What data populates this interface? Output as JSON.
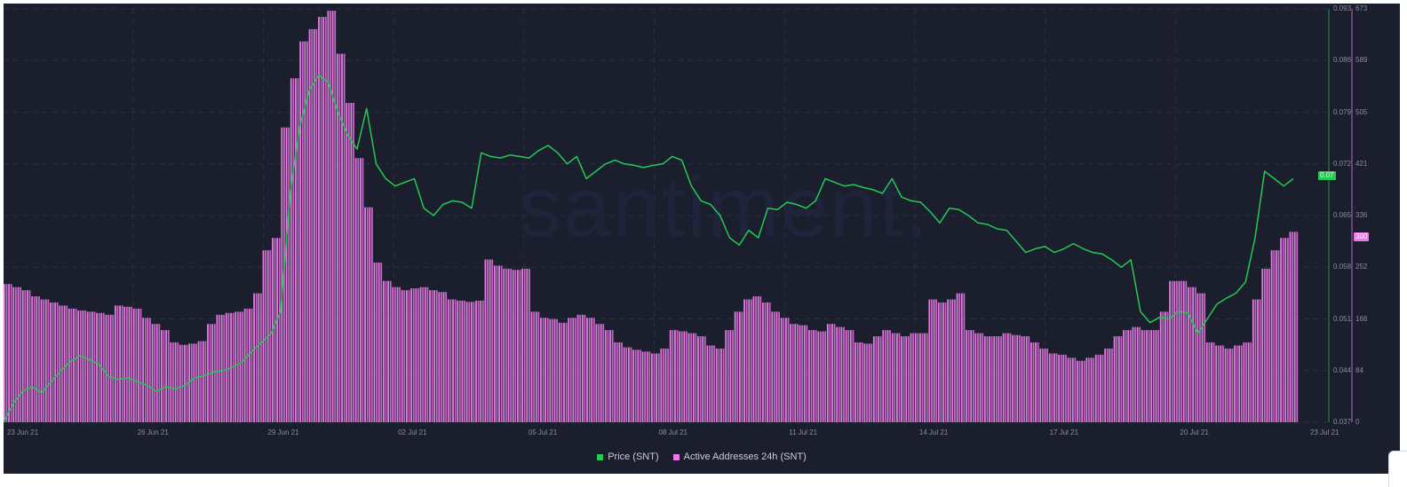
{
  "watermark": "santiment.",
  "legend": [
    {
      "label": "Price (SNT)",
      "color": "#26c953"
    },
    {
      "label": "Active Addresses 24h (SNT)",
      "color": "#e87be8"
    }
  ],
  "price_axis": {
    "ticks": [
      "0.093",
      "0.086",
      "0.079",
      "0.072",
      "0.065",
      "0.058",
      "0.051",
      "0.044",
      "0.037"
    ],
    "current_badge": "0.07",
    "color": "#26c953"
  },
  "aa_axis": {
    "ticks": [
      "673",
      "589",
      "505",
      "421",
      "336",
      "252",
      "168",
      "84",
      "0"
    ],
    "current_badge": "300",
    "color": "#b266c0"
  },
  "x_axis": {
    "ticks": [
      "23 Jun 21",
      "26 Jun 21",
      "29 Jun 21",
      "02 Jul 21",
      "05 Jul 21",
      "08 Jul 21",
      "11 Jul 21",
      "14 Jul 21",
      "17 Jul 21",
      "20 Jul 21",
      "23 Jul 21"
    ]
  },
  "chart_data": {
    "type": "bar+line",
    "title": "",
    "categories_note": "6-hour samples from 23 Jun 21 to 22 Jul 21",
    "x_start": "23 Jun 21",
    "x_end": "23 Jul 21",
    "series": [
      {
        "name": "Active Addresses 24h (SNT)",
        "type": "bar",
        "axis": "right",
        "ylim": [
          0,
          673
        ],
        "color": "#e87be8",
        "values": [
          225,
          220,
          215,
          205,
          200,
          195,
          190,
          185,
          182,
          180,
          178,
          175,
          190,
          188,
          185,
          170,
          160,
          150,
          130,
          126,
          128,
          132,
          160,
          175,
          178,
          180,
          185,
          210,
          280,
          300,
          480,
          560,
          620,
          640,
          660,
          670,
          600,
          520,
          430,
          350,
          260,
          230,
          220,
          215,
          218,
          220,
          215,
          212,
          200,
          198,
          196,
          198,
          265,
          255,
          250,
          248,
          250,
          180,
          170,
          168,
          162,
          170,
          175,
          170,
          160,
          150,
          130,
          122,
          118,
          115,
          112,
          120,
          150,
          148,
          145,
          140,
          125,
          120,
          150,
          180,
          200,
          205,
          195,
          180,
          170,
          160,
          158,
          150,
          148,
          160,
          155,
          150,
          130,
          128,
          140,
          150,
          145,
          140,
          145,
          145,
          200,
          195,
          200,
          210,
          150,
          145,
          140,
          140,
          145,
          142,
          140,
          130,
          120,
          112,
          110,
          105,
          100,
          105,
          110,
          120,
          140,
          150,
          155,
          150,
          150,
          180,
          230,
          230,
          220,
          210,
          130,
          125,
          120,
          125,
          130,
          200,
          250,
          280,
          300,
          310
        ]
      },
      {
        "name": "Price (SNT)",
        "type": "line",
        "axis": "left",
        "ylim": [
          0.037,
          0.093
        ],
        "color": "#26c953",
        "values": [
          0.037,
          0.0395,
          0.0412,
          0.0418,
          0.041,
          0.0425,
          0.044,
          0.0452,
          0.046,
          0.0455,
          0.0448,
          0.0432,
          0.0428,
          0.043,
          0.0425,
          0.042,
          0.0412,
          0.0418,
          0.0415,
          0.042,
          0.043,
          0.0433,
          0.0438,
          0.044,
          0.0445,
          0.0452,
          0.0466,
          0.0478,
          0.049,
          0.052,
          0.068,
          0.077,
          0.082,
          0.084,
          0.083,
          0.079,
          0.076,
          0.074,
          0.0795,
          0.072,
          0.07,
          0.069,
          0.0695,
          0.07,
          0.066,
          0.065,
          0.0665,
          0.067,
          0.0668,
          0.066,
          0.0735,
          0.073,
          0.0728,
          0.0732,
          0.073,
          0.0728,
          0.0738,
          0.0745,
          0.0735,
          0.072,
          0.073,
          0.07,
          0.071,
          0.072,
          0.0725,
          0.072,
          0.0718,
          0.0715,
          0.0718,
          0.072,
          0.073,
          0.0725,
          0.069,
          0.067,
          0.0665,
          0.065,
          0.062,
          0.061,
          0.063,
          0.062,
          0.066,
          0.0658,
          0.0668,
          0.0665,
          0.066,
          0.067,
          0.07,
          0.0695,
          0.069,
          0.0692,
          0.0688,
          0.0685,
          0.068,
          0.07,
          0.0675,
          0.067,
          0.0668,
          0.0655,
          0.064,
          0.066,
          0.0658,
          0.065,
          0.064,
          0.0638,
          0.0632,
          0.063,
          0.0615,
          0.06,
          0.0605,
          0.0608,
          0.06,
          0.0605,
          0.0612,
          0.0605,
          0.06,
          0.0598,
          0.059,
          0.058,
          0.059,
          0.052,
          0.0505,
          0.0512,
          0.051,
          0.052,
          0.0518,
          0.049,
          0.051,
          0.053,
          0.0538,
          0.0545,
          0.056,
          0.062,
          0.071,
          0.07,
          0.069,
          0.07
        ]
      }
    ],
    "xlabel": "",
    "ylabel_left": "Price (SNT)",
    "ylabel_right": "Active Addresses 24h (SNT)",
    "grid": true,
    "legend_position": "bottom-center"
  }
}
